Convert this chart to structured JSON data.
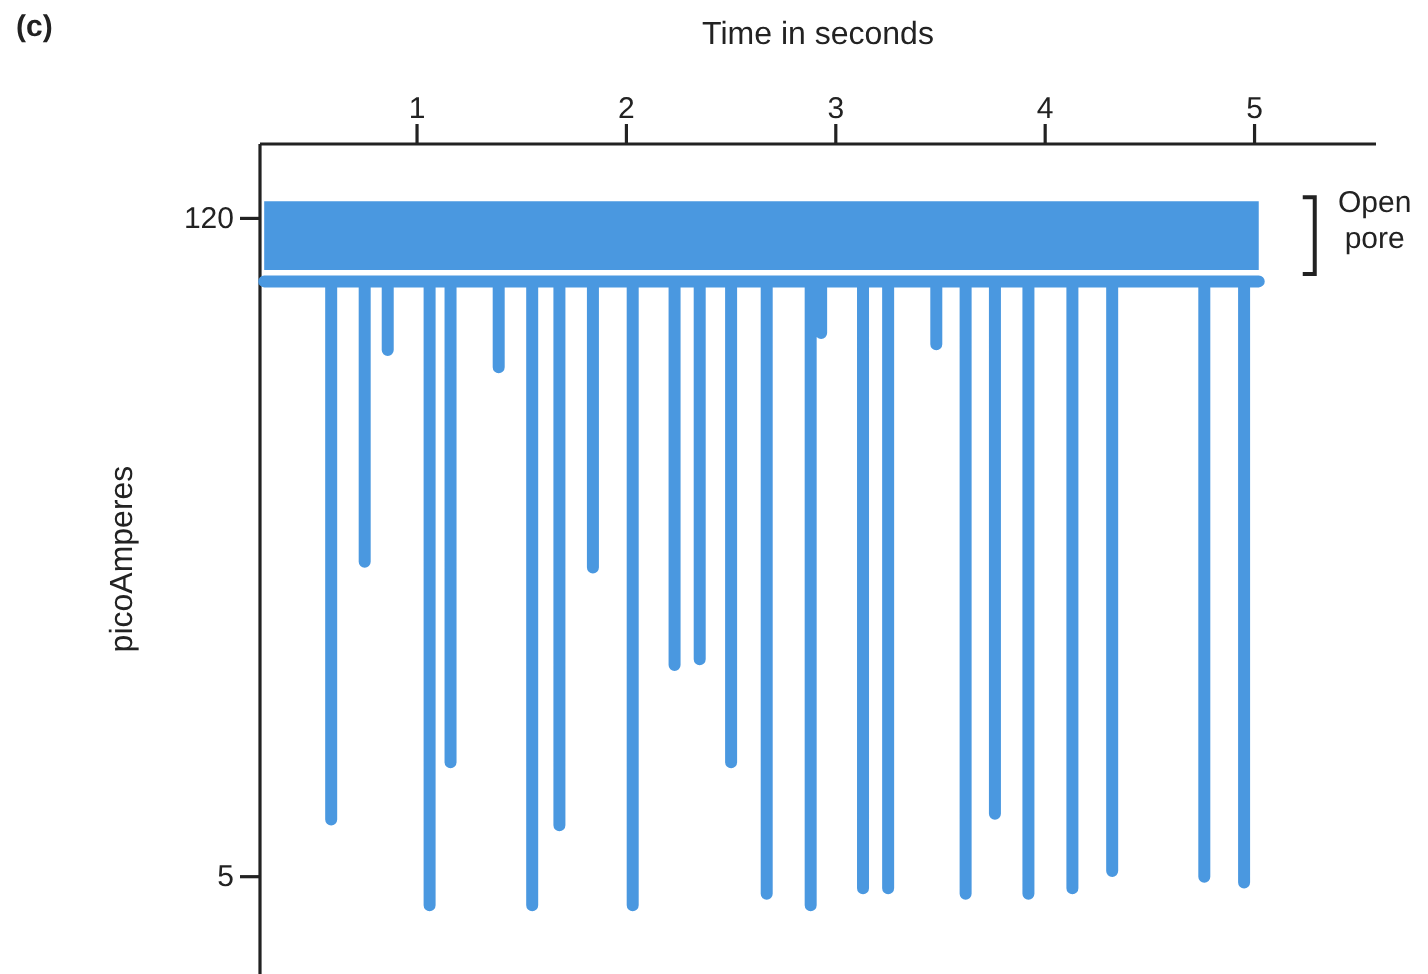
{
  "chart_data": {
    "type": "line",
    "xlabel": "Time in seconds",
    "ylabel": "picoAmperes",
    "xlim": [
      0.25,
      5.58
    ],
    "ylim": [
      -12,
      133
    ],
    "xticks": [
      1,
      2,
      3,
      4,
      5
    ],
    "yticks": [
      5,
      120
    ],
    "annotations": [
      "(c)",
      "Open pore"
    ],
    "series": [
      {
        "color": "#4a98e0",
        "x": [
          0.27,
          0.59,
          0.59,
          0.59,
          0.75,
          0.75,
          0.75,
          0.86,
          0.86,
          0.86,
          1.06,
          1.06,
          1.06,
          1.16,
          1.16,
          1.16,
          1.39,
          1.39,
          1.39,
          1.55,
          1.55,
          1.55,
          1.68,
          1.68,
          1.68,
          1.84,
          1.84,
          1.84,
          2.03,
          2.03,
          2.03,
          2.23,
          2.23,
          2.23,
          2.35,
          2.35,
          2.35,
          2.5,
          2.5,
          2.5,
          2.67,
          2.67,
          2.67,
          2.88,
          2.88,
          2.88,
          2.93,
          2.93,
          2.93,
          3.13,
          3.13,
          3.13,
          3.25,
          3.25,
          3.25,
          3.48,
          3.48,
          3.48,
          3.62,
          3.62,
          3.62,
          3.76,
          3.76,
          3.76,
          3.92,
          3.92,
          3.92,
          4.13,
          4.13,
          4.13,
          4.32,
          4.32,
          4.32,
          4.76,
          4.76,
          4.76,
          4.95,
          4.95,
          4.95,
          5.02
        ],
        "values": [
          109,
          109,
          15,
          109,
          109,
          60,
          109,
          109,
          97,
          109,
          109,
          0,
          109,
          109,
          25,
          109,
          109,
          94,
          109,
          109,
          0,
          109,
          109,
          14,
          109,
          109,
          59,
          109,
          109,
          0,
          109,
          109,
          42,
          109,
          109,
          43,
          109,
          109,
          25,
          109,
          109,
          2,
          109,
          109,
          0,
          109,
          109,
          100,
          109,
          109,
          3,
          109,
          109,
          3,
          109,
          109,
          98,
          109,
          109,
          2,
          109,
          109,
          16,
          109,
          109,
          2,
          109,
          109,
          3,
          109,
          109,
          6,
          109,
          109,
          5,
          109,
          109,
          4,
          109,
          109
        ],
        "lower": [
          111,
          111,
          111,
          111,
          111,
          111,
          111,
          111,
          111,
          111,
          111,
          111,
          111,
          111,
          111,
          111,
          111,
          111,
          111,
          111,
          111,
          111,
          111,
          111,
          111,
          111,
          111,
          111,
          111,
          111,
          111,
          111,
          111,
          111,
          111,
          111,
          111,
          111,
          111,
          111,
          111,
          111,
          111,
          111,
          111,
          111,
          111,
          111,
          111,
          111,
          111,
          111,
          111,
          111,
          111,
          111,
          111,
          111,
          111,
          111,
          111,
          111,
          111,
          111,
          111,
          111,
          111,
          111,
          111,
          111,
          111,
          111,
          111,
          111,
          111,
          111,
          111,
          111,
          111,
          111
        ],
        "upper": [
          123,
          123,
          123,
          123,
          123,
          123,
          123,
          123,
          123,
          123,
          123,
          123,
          123,
          123,
          123,
          123,
          123,
          123,
          123,
          123,
          123,
          123,
          123,
          123,
          123,
          123,
          123,
          123,
          123,
          123,
          123,
          123,
          123,
          123,
          123,
          123,
          123,
          123,
          123,
          123,
          123,
          123,
          123,
          123,
          123,
          123,
          123,
          123,
          123,
          123,
          123,
          123,
          123,
          123,
          123,
          123,
          123,
          123,
          123,
          123,
          123,
          123,
          123,
          123,
          123,
          123,
          123,
          123,
          123,
          123,
          123,
          123,
          123,
          123,
          123,
          123,
          123,
          123,
          123,
          123
        ]
      }
    ]
  }
}
